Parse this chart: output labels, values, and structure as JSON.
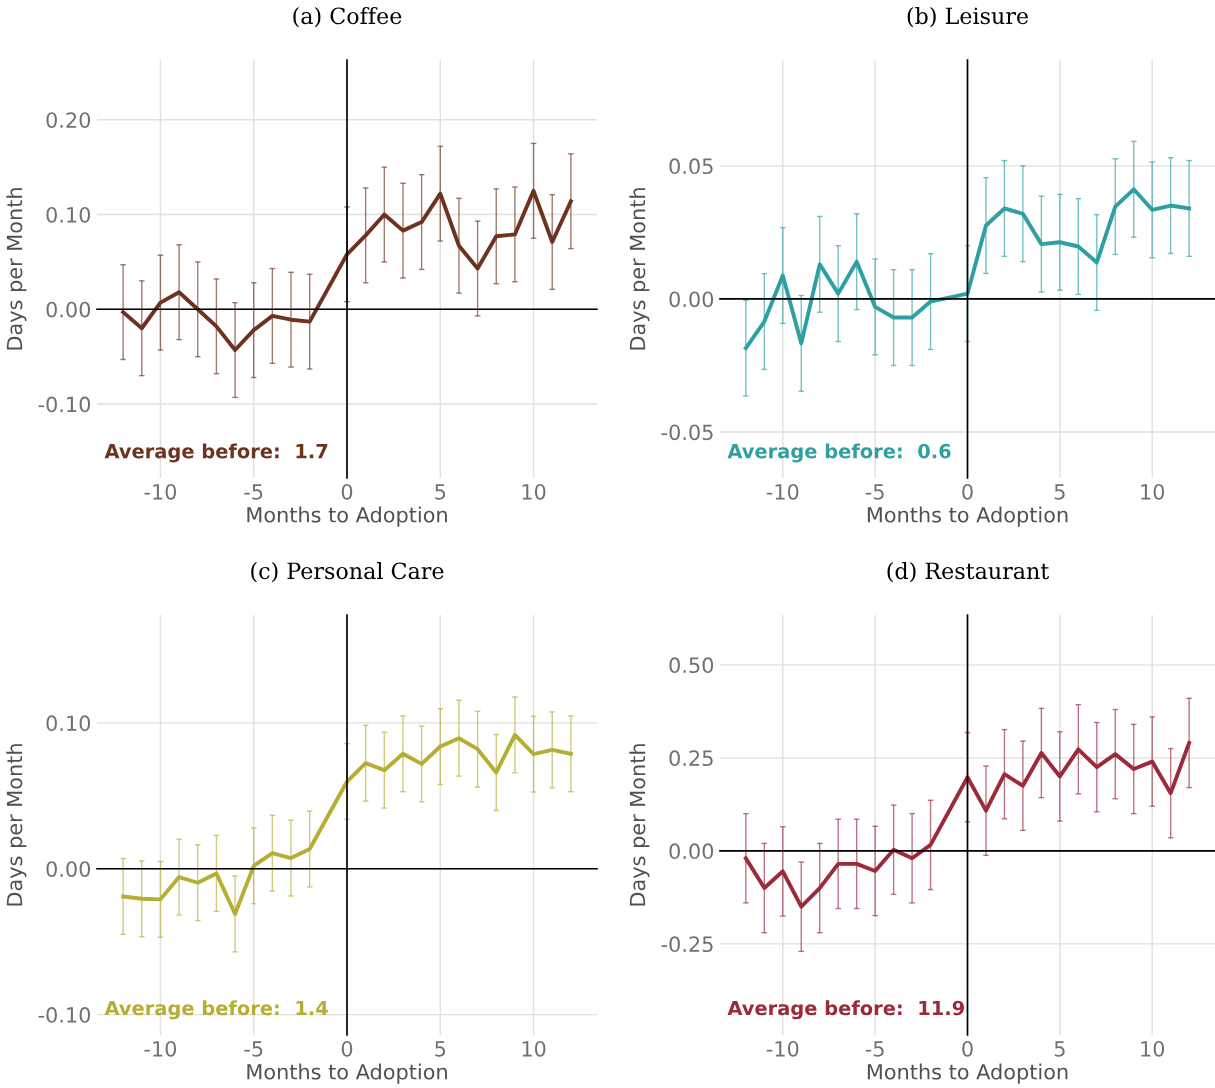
{
  "chart_data": [
    {
      "type": "line",
      "title": "(a) Coffee",
      "xlabel": "Months to Adoption",
      "ylabel": "Days per Month",
      "x": [
        -12,
        -11,
        -10,
        -9,
        -8,
        -7,
        -6,
        -5,
        -4,
        -3,
        -2,
        0,
        1,
        2,
        3,
        4,
        5,
        6,
        7,
        8,
        9,
        10,
        11,
        12
      ],
      "series": [
        {
          "color": "#6e3320",
          "values": [
            -0.003,
            -0.02,
            0.007,
            0.018,
            0.0,
            -0.018,
            -0.043,
            -0.022,
            -0.007,
            -0.011,
            -0.013,
            0.058,
            0.078,
            0.1,
            0.083,
            0.092,
            0.122,
            0.067,
            0.043,
            0.077,
            0.079,
            0.125,
            0.071,
            0.114
          ],
          "errors": [
            0.05,
            0.05,
            0.05,
            0.05,
            0.05,
            0.05,
            0.05,
            0.05,
            0.05,
            0.05,
            0.05,
            0.05,
            0.05,
            0.05,
            0.05,
            0.05,
            0.05,
            0.05,
            0.05,
            0.05,
            0.05,
            0.05,
            0.05,
            0.05
          ]
        }
      ],
      "xlim": [
        -13.4,
        13.4
      ],
      "xticks": [
        -10,
        -5,
        0,
        5,
        10
      ],
      "ylim": [
        -0.178,
        0.263
      ],
      "yticks": [
        {
          "value": -0.1,
          "label": "-0.10"
        },
        {
          "value": 0,
          "label": "0.00"
        },
        {
          "value": 0.1,
          "label": "0.10"
        },
        {
          "value": 0.2,
          "label": "0.20"
        }
      ],
      "annotations": [
        "Average before:  1.7"
      ],
      "grid": true,
      "marker": "none",
      "line_style": "solid"
    },
    {
      "type": "line",
      "title": "(b) Leisure",
      "xlabel": "Months to Adoption",
      "ylabel": "Days per Month",
      "x": [
        -12,
        -11,
        -10,
        -9,
        -8,
        -7,
        -6,
        -5,
        -4,
        -3,
        -2,
        0,
        1,
        2,
        3,
        4,
        5,
        6,
        7,
        8,
        9,
        10,
        11,
        12
      ],
      "series": [
        {
          "color": "#2e9fa3",
          "values": [
            -0.0185,
            -0.0085,
            0.0088,
            -0.0167,
            0.013,
            0.002,
            0.014,
            -0.003,
            -0.007,
            -0.007,
            -0.001,
            0.002,
            0.0276,
            0.034,
            0.032,
            0.0206,
            0.0213,
            0.0197,
            0.0137,
            0.0347,
            0.0412,
            0.0335,
            0.0351,
            0.034
          ],
          "errors": [
            0.018,
            0.018,
            0.018,
            0.018,
            0.018,
            0.018,
            0.018,
            0.018,
            0.018,
            0.018,
            0.018,
            0.018,
            0.018,
            0.018,
            0.018,
            0.018,
            0.018,
            0.018,
            0.018,
            0.018,
            0.018,
            0.018,
            0.018,
            0.018
          ]
        }
      ],
      "xlim": [
        -13.4,
        13.4
      ],
      "xticks": [
        -10,
        -5,
        0,
        5,
        10
      ],
      "ylim": [
        -0.0673,
        0.0898
      ],
      "yticks": [
        {
          "value": -0.05,
          "label": "-0.05"
        },
        {
          "value": 0,
          "label": "0.00"
        },
        {
          "value": 0.05,
          "label": "0.05"
        }
      ],
      "annotations": [
        "Average before:  0.6"
      ],
      "grid": true,
      "marker": "none",
      "line_style": "solid"
    },
    {
      "type": "line",
      "title": "(c) Personal Care",
      "xlabel": "Months to Adoption",
      "ylabel": "Days per Month",
      "x": [
        -12,
        -11,
        -10,
        -9,
        -8,
        -7,
        -6,
        -5,
        -4,
        -3,
        -2,
        0,
        1,
        2,
        3,
        4,
        5,
        6,
        7,
        8,
        9,
        10,
        11,
        12
      ],
      "series": [
        {
          "color": "#b5ae35",
          "values": [
            -0.019,
            -0.0206,
            -0.021,
            -0.0057,
            -0.0096,
            -0.0032,
            -0.031,
            0.002,
            0.0107,
            0.0073,
            0.0135,
            0.0598,
            0.0724,
            0.0676,
            0.0788,
            0.0719,
            0.0838,
            0.0895,
            0.082,
            0.066,
            0.0918,
            0.0786,
            0.0815,
            0.0788
          ],
          "errors": [
            0.026,
            0.026,
            0.026,
            0.026,
            0.026,
            0.026,
            0.026,
            0.026,
            0.026,
            0.026,
            0.026,
            0.026,
            0.026,
            0.026,
            0.026,
            0.026,
            0.026,
            0.026,
            0.026,
            0.026,
            0.026,
            0.026,
            0.026,
            0.026
          ]
        }
      ],
      "xlim": [
        -13.4,
        13.4
      ],
      "xticks": [
        -10,
        -5,
        0,
        5,
        10
      ],
      "ylim": [
        -0.114,
        0.174
      ],
      "yticks": [
        {
          "value": -0.1,
          "label": "-0.10"
        },
        {
          "value": 0,
          "label": "0.00"
        },
        {
          "value": 0.1,
          "label": "0.10"
        }
      ],
      "annotations": [
        "Average before:  1.4"
      ],
      "grid": true,
      "marker": "none",
      "line_style": "solid"
    },
    {
      "type": "line",
      "title": "(d) Restaurant",
      "xlabel": "Months to Adoption",
      "ylabel": "Days per Month",
      "x": [
        -12,
        -11,
        -10,
        -9,
        -8,
        -7,
        -6,
        -5,
        -4,
        -3,
        -2,
        0,
        1,
        2,
        3,
        4,
        5,
        6,
        7,
        8,
        9,
        10,
        11,
        12
      ],
      "series": [
        {
          "color": "#9b2a3a",
          "values": [
            -0.02,
            -0.1,
            -0.055,
            -0.15,
            -0.1,
            -0.035,
            -0.035,
            -0.054,
            0.003,
            -0.02,
            0.016,
            0.198,
            0.108,
            0.206,
            0.175,
            0.263,
            0.2,
            0.273,
            0.225,
            0.26,
            0.22,
            0.24,
            0.155,
            0.29
          ],
          "errors": [
            0.12,
            0.12,
            0.12,
            0.12,
            0.12,
            0.12,
            0.12,
            0.12,
            0.12,
            0.12,
            0.12,
            0.12,
            0.12,
            0.12,
            0.12,
            0.12,
            0.12,
            0.12,
            0.12,
            0.12,
            0.12,
            0.12,
            0.12,
            0.12
          ]
        }
      ],
      "xlim": [
        -13.4,
        13.4
      ],
      "xticks": [
        -10,
        -5,
        0,
        5,
        10
      ],
      "ylim": [
        -0.495,
        0.634
      ],
      "yticks": [
        {
          "value": -0.25,
          "label": "-0.25"
        },
        {
          "value": 0,
          "label": "0.00"
        },
        {
          "value": 0.25,
          "label": "0.25"
        },
        {
          "value": 0.5,
          "label": "0.50"
        }
      ],
      "annotations": [
        "Average before:  11.9"
      ],
      "grid": true,
      "marker": "none",
      "line_style": "solid"
    }
  ]
}
